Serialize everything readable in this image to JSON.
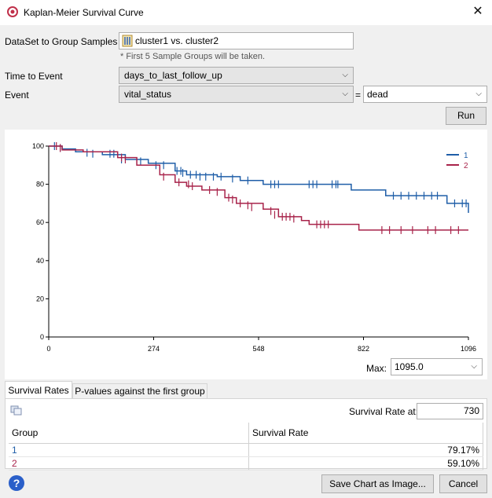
{
  "window": {
    "title": "Kaplan-Meier Survival Curve"
  },
  "form": {
    "dataset_label": "DataSet to Group Samples",
    "dataset_value": "cluster1 vs. cluster2",
    "dataset_hint": "* First 5 Sample Groups will be taken.",
    "time_label": "Time to Event",
    "time_value": "days_to_last_follow_up",
    "event_label": "Event",
    "event_value": "vital_status",
    "equals": "=",
    "event_state": "dead",
    "run_label": "Run"
  },
  "max": {
    "label": "Max:",
    "value": "1095.0"
  },
  "tabs": [
    {
      "label": "Survival Rates"
    },
    {
      "label": "P-values against the first group"
    }
  ],
  "survival": {
    "rate_at_label": "Survival Rate at:",
    "rate_at_value": "730",
    "columns": [
      "Group",
      "Survival Rate"
    ],
    "rows": [
      {
        "group": "1",
        "rate": "79.17%",
        "color": "#1f5ea8"
      },
      {
        "group": "2",
        "rate": "59.10%",
        "color": "#a8234a"
      }
    ]
  },
  "buttons": {
    "save_chart": "Save Chart as Image...",
    "cancel": "Cancel"
  },
  "chart_data": {
    "type": "line",
    "step": true,
    "title": "",
    "xlabel": "",
    "ylabel": "",
    "xlim": [
      0,
      1096
    ],
    "ylim": [
      0,
      100
    ],
    "x_ticks": [
      "0",
      "274",
      "548",
      "822",
      "1096"
    ],
    "y_ticks": [
      "0",
      "20",
      "40",
      "60",
      "80",
      "100"
    ],
    "legend_position": "top-right",
    "series": [
      {
        "name": "1",
        "color": "#1f5ea8",
        "points": [
          [
            0,
            100
          ],
          [
            35,
            98.5
          ],
          [
            70,
            97
          ],
          [
            140,
            95.5
          ],
          [
            200,
            93
          ],
          [
            260,
            91
          ],
          [
            330,
            87
          ],
          [
            360,
            85
          ],
          [
            440,
            84
          ],
          [
            500,
            82
          ],
          [
            560,
            80
          ],
          [
            660,
            80
          ],
          [
            790,
            77
          ],
          [
            880,
            74
          ],
          [
            1040,
            70
          ],
          [
            1096,
            69
          ],
          [
            1096,
            65
          ]
        ],
        "censors": [
          [
            15,
            100
          ],
          [
            30,
            99
          ],
          [
            100,
            96.5
          ],
          [
            115,
            96
          ],
          [
            160,
            96
          ],
          [
            170,
            96
          ],
          [
            190,
            93
          ],
          [
            240,
            92
          ],
          [
            280,
            90
          ],
          [
            300,
            90
          ],
          [
            335,
            87
          ],
          [
            345,
            87
          ],
          [
            350,
            86
          ],
          [
            370,
            85
          ],
          [
            385,
            85
          ],
          [
            395,
            84
          ],
          [
            410,
            84
          ],
          [
            430,
            84
          ],
          [
            450,
            84
          ],
          [
            480,
            83
          ],
          [
            520,
            82
          ],
          [
            580,
            80
          ],
          [
            590,
            80
          ],
          [
            600,
            80
          ],
          [
            680,
            80
          ],
          [
            690,
            80
          ],
          [
            700,
            80
          ],
          [
            740,
            80
          ],
          [
            750,
            80
          ],
          [
            755,
            80
          ],
          [
            900,
            74
          ],
          [
            920,
            74
          ],
          [
            940,
            74
          ],
          [
            960,
            74
          ],
          [
            980,
            74
          ],
          [
            1000,
            74
          ],
          [
            1015,
            74
          ],
          [
            1060,
            70
          ],
          [
            1080,
            70
          ],
          [
            1090,
            70
          ]
        ]
      },
      {
        "name": "2",
        "color": "#a8234a",
        "points": [
          [
            0,
            100
          ],
          [
            35,
            98
          ],
          [
            90,
            97
          ],
          [
            180,
            94
          ],
          [
            230,
            90
          ],
          [
            290,
            85
          ],
          [
            330,
            81
          ],
          [
            360,
            79
          ],
          [
            400,
            77
          ],
          [
            460,
            73
          ],
          [
            490,
            70
          ],
          [
            560,
            67
          ],
          [
            600,
            63
          ],
          [
            660,
            61
          ],
          [
            680,
            59
          ],
          [
            790,
            59
          ],
          [
            810,
            56
          ],
          [
            1096,
            56
          ]
        ],
        "censors": [
          [
            20,
            100
          ],
          [
            30,
            99
          ],
          [
            190,
            94
          ],
          [
            200,
            93
          ],
          [
            300,
            84
          ],
          [
            340,
            81
          ],
          [
            365,
            80
          ],
          [
            375,
            79
          ],
          [
            420,
            77
          ],
          [
            440,
            76
          ],
          [
            470,
            73
          ],
          [
            480,
            72
          ],
          [
            500,
            70
          ],
          [
            520,
            69
          ],
          [
            530,
            68
          ],
          [
            580,
            66
          ],
          [
            590,
            64
          ],
          [
            610,
            63
          ],
          [
            620,
            63
          ],
          [
            630,
            63
          ],
          [
            640,
            62
          ],
          [
            700,
            59
          ],
          [
            710,
            59
          ],
          [
            720,
            59
          ],
          [
            730,
            59
          ],
          [
            870,
            56
          ],
          [
            890,
            56
          ],
          [
            920,
            56
          ],
          [
            950,
            56
          ],
          [
            990,
            56
          ],
          [
            1010,
            56
          ],
          [
            1050,
            56
          ],
          [
            1070,
            56
          ]
        ]
      }
    ]
  }
}
